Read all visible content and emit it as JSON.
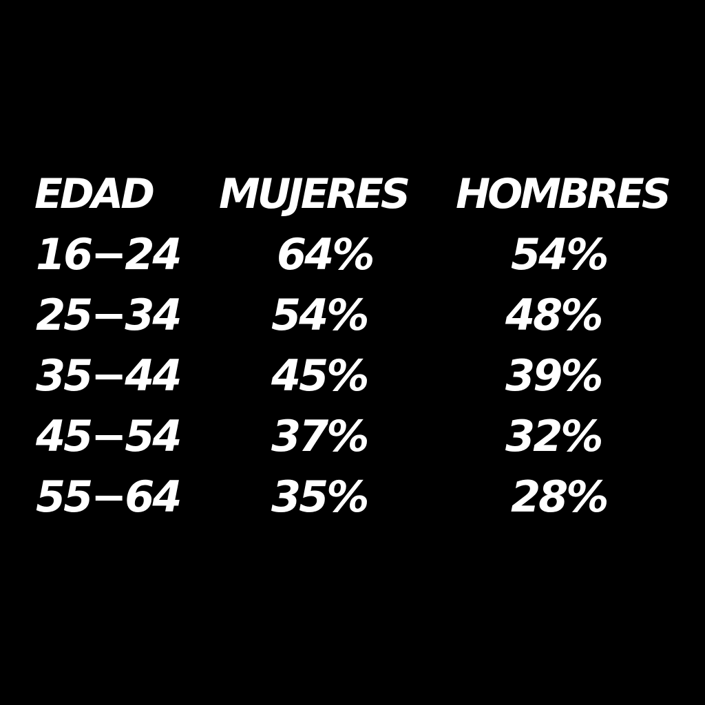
{
  "chart_data": {
    "type": "table",
    "columns": [
      "EDAD",
      "MUJERES",
      "HOMBRES"
    ],
    "rows": [
      {
        "edad": "16−24",
        "mujeres": "64%",
        "hombres": "54%"
      },
      {
        "edad": "25−34",
        "mujeres": "54%",
        "hombres": "48%"
      },
      {
        "edad": "35−44",
        "mujeres": "45%",
        "hombres": "39%"
      },
      {
        "edad": "45−54",
        "mujeres": "37%",
        "hombres": "32%"
      },
      {
        "edad": "55−64",
        "mujeres": "35%",
        "hombres": "28%"
      }
    ]
  },
  "colors": {
    "background": "#000000",
    "text": "#ffffff"
  }
}
